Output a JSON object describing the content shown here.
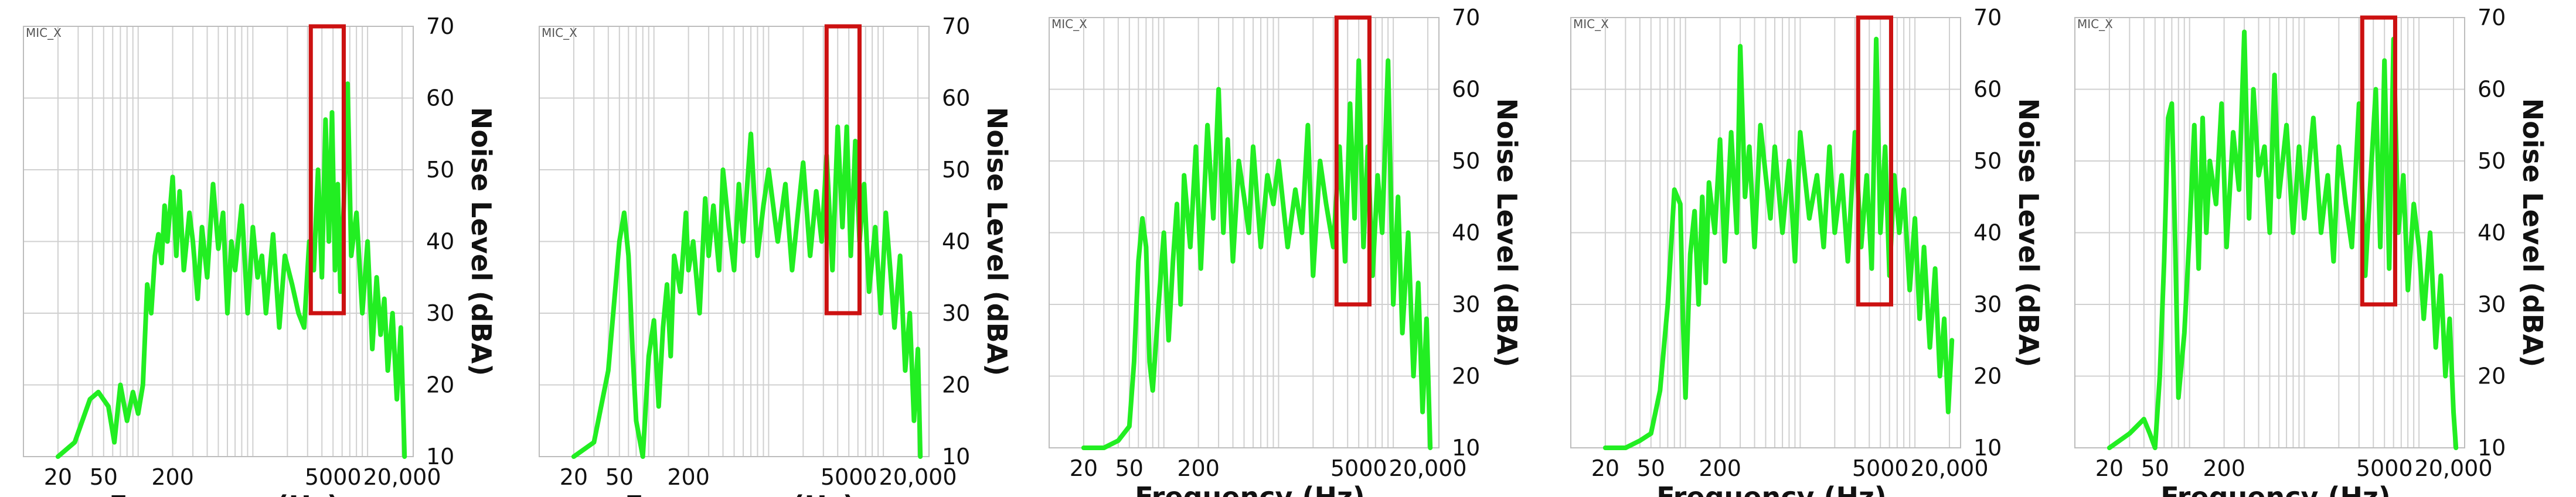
{
  "chart_data": [
    {
      "type": "line",
      "panel_label": "MIC_X",
      "xlabel": "Frequency (Hz)",
      "ylabel": "Noise Level (dBA)",
      "x_scale": "log",
      "xlim": [
        10,
        25000
      ],
      "ylim": [
        10,
        70
      ],
      "x_ticks": [
        20,
        50,
        200,
        5000,
        20000
      ],
      "x_tick_labels": [
        "20",
        "50",
        "200",
        "5000",
        "20,000"
      ],
      "y_ticks": [
        10,
        20,
        30,
        40,
        50,
        60,
        70
      ],
      "y_tick_labels": [
        "10",
        "20",
        "30",
        "40",
        "50",
        "60",
        "70"
      ],
      "grid": true,
      "line_color": "#22ee22",
      "highlight_color": "#cc1111",
      "highlight": {
        "x_range": [
          3200,
          6200
        ],
        "y_range": [
          30,
          70
        ]
      },
      "x": [
        20,
        28,
        38,
        45,
        55,
        62,
        70,
        80,
        90,
        100,
        110,
        120,
        130,
        140,
        150,
        160,
        170,
        180,
        200,
        215,
        230,
        250,
        280,
        300,
        330,
        360,
        400,
        450,
        500,
        550,
        600,
        650,
        700,
        800,
        900,
        1000,
        1100,
        1200,
        1300,
        1500,
        1700,
        1900,
        2200,
        2500,
        2800,
        3100,
        3400,
        3700,
        4000,
        4300,
        4600,
        4900,
        5200,
        5500,
        5800,
        6200,
        6700,
        7200,
        8000,
        9000,
        10000,
        11000,
        12000,
        13000,
        14000,
        15000,
        16500,
        18000,
        19500,
        21000
      ],
      "y": [
        10,
        12,
        18,
        19,
        17,
        12,
        20,
        15,
        19,
        16,
        20,
        34,
        30,
        38,
        41,
        37,
        45,
        40,
        49,
        38,
        47,
        36,
        44,
        40,
        32,
        42,
        35,
        48,
        39,
        44,
        30,
        40,
        36,
        45,
        30,
        42,
        35,
        38,
        30,
        41,
        28,
        38,
        34,
        30,
        28,
        40,
        36,
        50,
        35,
        57,
        40,
        58,
        36,
        48,
        33,
        45,
        62,
        38,
        44,
        30,
        40,
        25,
        35,
        27,
        32,
        22,
        30,
        18,
        28,
        10
      ]
    },
    {
      "type": "line",
      "panel_label": "MIC_X",
      "xlabel": "Frequency (Hz)",
      "ylabel": "Noise Level (dBA)",
      "x_scale": "log",
      "xlim": [
        10,
        25000
      ],
      "ylim": [
        10,
        70
      ],
      "x_ticks": [
        20,
        50,
        200,
        5000,
        20000
      ],
      "x_tick_labels": [
        "20",
        "50",
        "200",
        "5000",
        "20,000"
      ],
      "y_ticks": [
        10,
        20,
        30,
        40,
        50,
        60,
        70
      ],
      "y_tick_labels": [
        "10",
        "20",
        "30",
        "40",
        "50",
        "60",
        "70"
      ],
      "grid": true,
      "line_color": "#22ee22",
      "highlight_color": "#cc1111",
      "highlight": {
        "x_range": [
          3200,
          6200
        ],
        "y_range": [
          30,
          70
        ]
      },
      "x": [
        20,
        30,
        40,
        50,
        55,
        60,
        65,
        70,
        80,
        90,
        100,
        110,
        120,
        130,
        140,
        150,
        170,
        190,
        200,
        220,
        250,
        280,
        300,
        330,
        370,
        400,
        450,
        500,
        550,
        600,
        700,
        800,
        900,
        1000,
        1200,
        1400,
        1600,
        1800,
        2000,
        2300,
        2600,
        2900,
        3200,
        3600,
        4000,
        4400,
        4800,
        5200,
        5700,
        6200,
        6800,
        7500,
        8500,
        9500,
        10500,
        11500,
        12500,
        14000,
        15500,
        17000,
        18500,
        20000,
        21000
      ],
      "y": [
        10,
        12,
        22,
        40,
        44,
        38,
        25,
        15,
        10,
        24,
        29,
        17,
        28,
        34,
        24,
        38,
        33,
        44,
        36,
        40,
        30,
        46,
        38,
        45,
        36,
        50,
        42,
        36,
        48,
        40,
        55,
        38,
        45,
        50,
        40,
        48,
        36,
        44,
        51,
        38,
        47,
        40,
        52,
        36,
        56,
        42,
        56,
        38,
        54,
        40,
        48,
        33,
        42,
        30,
        44,
        36,
        28,
        38,
        22,
        30,
        15,
        25,
        10
      ]
    },
    {
      "type": "line",
      "panel_label": "MIC_X",
      "xlabel": "Frequency (Hz)",
      "ylabel": "Noise Level (dBA)",
      "x_scale": "log",
      "xlim": [
        10,
        25000
      ],
      "ylim": [
        10,
        70
      ],
      "x_ticks": [
        20,
        50,
        200,
        5000,
        20000
      ],
      "x_tick_labels": [
        "20",
        "50",
        "200",
        "5000",
        "20,000"
      ],
      "y_ticks": [
        10,
        20,
        30,
        40,
        50,
        60,
        70
      ],
      "y_tick_labels": [
        "10",
        "20",
        "30",
        "40",
        "50",
        "60",
        "70"
      ],
      "grid": true,
      "line_color": "#22ee22",
      "highlight_color": "#cc1111",
      "highlight": {
        "x_range": [
          3200,
          6200
        ],
        "y_range": [
          30,
          70
        ]
      },
      "x": [
        20,
        30,
        40,
        50,
        55,
        60,
        65,
        70,
        75,
        80,
        90,
        100,
        110,
        120,
        130,
        140,
        150,
        170,
        190,
        210,
        240,
        270,
        300,
        330,
        360,
        400,
        450,
        500,
        550,
        600,
        700,
        800,
        900,
        1000,
        1200,
        1400,
        1600,
        1800,
        2000,
        2300,
        2600,
        3000,
        3400,
        3800,
        4200,
        4600,
        5000,
        5500,
        6000,
        6600,
        7300,
        8000,
        9000,
        10000,
        11000,
        12000,
        13500,
        15000,
        16500,
        18000,
        19500,
        21000
      ],
      "y": [
        10,
        10,
        11,
        13,
        22,
        36,
        42,
        38,
        22,
        18,
        30,
        40,
        25,
        36,
        44,
        30,
        48,
        38,
        52,
        35,
        55,
        42,
        60,
        40,
        53,
        36,
        50,
        45,
        40,
        52,
        38,
        48,
        44,
        50,
        38,
        46,
        40,
        55,
        34,
        50,
        44,
        38,
        52,
        36,
        58,
        42,
        64,
        38,
        52,
        34,
        48,
        40,
        64,
        30,
        45,
        26,
        40,
        20,
        33,
        15,
        28,
        10
      ]
    },
    {
      "type": "line",
      "panel_label": "MIC_X",
      "xlabel": "Frequency (Hz)",
      "ylabel": "Noise Level (dBA)",
      "x_scale": "log",
      "xlim": [
        10,
        25000
      ],
      "ylim": [
        10,
        70
      ],
      "x_ticks": [
        20,
        50,
        200,
        5000,
        20000
      ],
      "x_tick_labels": [
        "20",
        "50",
        "200",
        "5000",
        "20,000"
      ],
      "y_ticks": [
        10,
        20,
        30,
        40,
        50,
        60,
        70
      ],
      "y_tick_labels": [
        "10",
        "20",
        "30",
        "40",
        "50",
        "60",
        "70"
      ],
      "grid": true,
      "line_color": "#22ee22",
      "highlight_color": "#cc1111",
      "highlight": {
        "x_range": [
          3200,
          6200
        ],
        "y_range": [
          30,
          70
        ]
      },
      "x": [
        20,
        30,
        40,
        50,
        60,
        70,
        80,
        90,
        95,
        100,
        110,
        120,
        130,
        140,
        150,
        160,
        180,
        200,
        220,
        250,
        280,
        300,
        330,
        360,
        400,
        450,
        500,
        550,
        600,
        700,
        800,
        900,
        1000,
        1200,
        1400,
        1600,
        1800,
        2000,
        2300,
        2600,
        3000,
        3400,
        3800,
        4200,
        4600,
        5000,
        5500,
        6000,
        6600,
        7300,
        8000,
        9000,
        10000,
        11000,
        12000,
        13500,
        15000,
        16500,
        18000,
        19500,
        21000
      ],
      "y": [
        10,
        10,
        11,
        12,
        18,
        30,
        46,
        44,
        28,
        17,
        37,
        43,
        30,
        45,
        33,
        47,
        40,
        53,
        36,
        54,
        40,
        66,
        45,
        52,
        38,
        55,
        48,
        42,
        52,
        40,
        50,
        36,
        54,
        42,
        48,
        38,
        52,
        40,
        48,
        36,
        54,
        38,
        48,
        35,
        67,
        40,
        52,
        34,
        48,
        40,
        46,
        32,
        42,
        28,
        38,
        24,
        35,
        20,
        28,
        15,
        25
      ]
    },
    {
      "type": "line",
      "panel_label": "MIC_X",
      "xlabel": "Frequency (Hz)",
      "ylabel": "Noise Level (dBA)",
      "x_scale": "log",
      "xlim": [
        10,
        25000
      ],
      "ylim": [
        10,
        70
      ],
      "x_ticks": [
        20,
        50,
        200,
        5000,
        20000
      ],
      "x_tick_labels": [
        "20",
        "50",
        "200",
        "5000",
        "20,000"
      ],
      "y_ticks": [
        10,
        20,
        30,
        40,
        50,
        60,
        70
      ],
      "y_tick_labels": [
        "10",
        "20",
        "30",
        "40",
        "50",
        "60",
        "70"
      ],
      "grid": true,
      "line_color": "#22ee22",
      "highlight_color": "#cc1111",
      "highlight": {
        "x_range": [
          3200,
          6200
        ],
        "y_range": [
          30,
          70
        ]
      },
      "x": [
        20,
        30,
        40,
        45,
        50,
        55,
        60,
        65,
        70,
        75,
        80,
        90,
        100,
        110,
        120,
        130,
        140,
        150,
        170,
        190,
        210,
        240,
        270,
        300,
        330,
        360,
        400,
        450,
        500,
        550,
        600,
        700,
        800,
        900,
        1000,
        1200,
        1400,
        1600,
        1800,
        2000,
        2300,
        2600,
        3000,
        3400,
        3800,
        4200,
        4600,
        5000,
        5500,
        6000,
        6600,
        7300,
        8000,
        9000,
        10000,
        11000,
        12500,
        14000,
        15500,
        17000,
        18500,
        20000,
        21000
      ],
      "y": [
        10,
        12,
        14,
        12,
        10,
        20,
        36,
        56,
        58,
        38,
        17,
        26,
        40,
        55,
        35,
        56,
        40,
        50,
        44,
        58,
        38,
        54,
        46,
        68,
        42,
        60,
        48,
        52,
        40,
        62,
        45,
        55,
        40,
        52,
        42,
        56,
        40,
        48,
        36,
        52,
        44,
        38,
        58,
        34,
        48,
        60,
        38,
        64,
        35,
        67,
        40,
        48,
        32,
        44,
        38,
        28,
        40,
        24,
        34,
        20,
        28,
        15,
        10
      ]
    }
  ]
}
